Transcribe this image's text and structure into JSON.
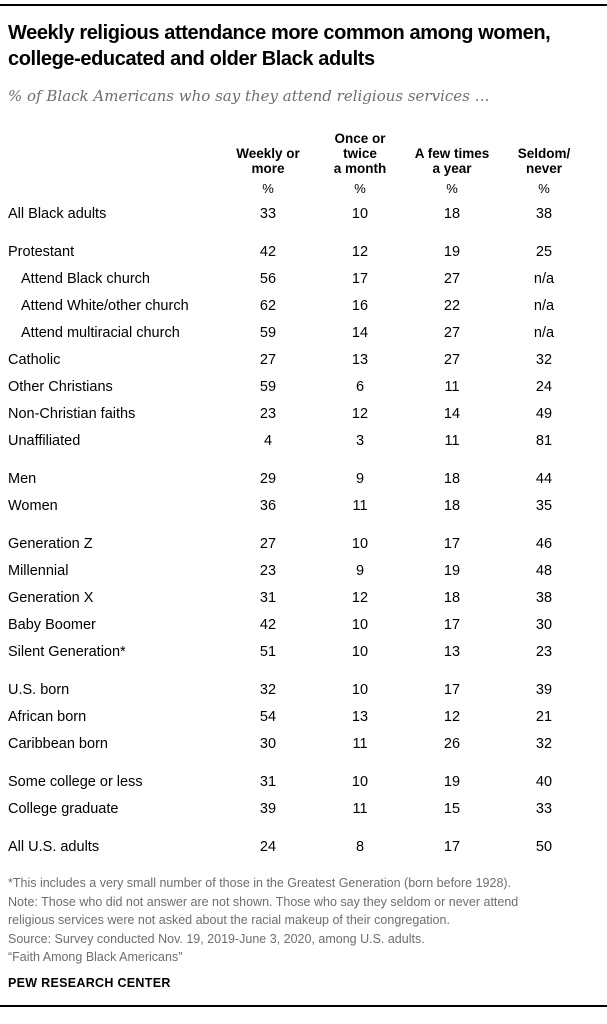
{
  "header": {
    "title": "Weekly religious attendance more common among women, college-educated and older Black adults",
    "subtitle": "% of Black Americans who say they attend religious services …"
  },
  "chart_data": {
    "type": "table",
    "title": "Weekly religious attendance more common among women, college-educated and older Black adults",
    "subtitle": "% of Black Americans who say they attend religious services …",
    "columns": [
      "Weekly or\nmore",
      "Once or\ntwice\na month",
      "A few times\na year",
      "Seldom/\nnever"
    ],
    "unit_row": [
      "%",
      "%",
      "%",
      "%"
    ],
    "groups": [
      {
        "rows": [
          {
            "label": "All Black adults",
            "indent": false,
            "values": [
              "33",
              "10",
              "18",
              "38"
            ]
          }
        ]
      },
      {
        "rows": [
          {
            "label": "Protestant",
            "indent": false,
            "values": [
              "42",
              "12",
              "19",
              "25"
            ]
          },
          {
            "label": "Attend Black church",
            "indent": true,
            "values": [
              "56",
              "17",
              "27",
              "n/a"
            ]
          },
          {
            "label": "Attend White/other church",
            "indent": true,
            "values": [
              "62",
              "16",
              "22",
              "n/a"
            ]
          },
          {
            "label": "Attend multiracial church",
            "indent": true,
            "values": [
              "59",
              "14",
              "27",
              "n/a"
            ]
          },
          {
            "label": "Catholic",
            "indent": false,
            "values": [
              "27",
              "13",
              "27",
              "32"
            ]
          },
          {
            "label": "Other Christians",
            "indent": false,
            "values": [
              "59",
              "6",
              "11",
              "24"
            ]
          },
          {
            "label": "Non-Christian faiths",
            "indent": false,
            "values": [
              "23",
              "12",
              "14",
              "49"
            ]
          },
          {
            "label": "Unaffiliated",
            "indent": false,
            "values": [
              "4",
              "3",
              "11",
              "81"
            ]
          }
        ]
      },
      {
        "rows": [
          {
            "label": "Men",
            "indent": false,
            "values": [
              "29",
              "9",
              "18",
              "44"
            ]
          },
          {
            "label": "Women",
            "indent": false,
            "values": [
              "36",
              "11",
              "18",
              "35"
            ]
          }
        ]
      },
      {
        "rows": [
          {
            "label": "Generation Z",
            "indent": false,
            "values": [
              "27",
              "10",
              "17",
              "46"
            ]
          },
          {
            "label": "Millennial",
            "indent": false,
            "values": [
              "23",
              "9",
              "19",
              "48"
            ]
          },
          {
            "label": "Generation X",
            "indent": false,
            "values": [
              "31",
              "12",
              "18",
              "38"
            ]
          },
          {
            "label": "Baby Boomer",
            "indent": false,
            "values": [
              "42",
              "10",
              "17",
              "30"
            ]
          },
          {
            "label": "Silent Generation*",
            "indent": false,
            "values": [
              "51",
              "10",
              "13",
              "23"
            ]
          }
        ]
      },
      {
        "rows": [
          {
            "label": "U.S. born",
            "indent": false,
            "values": [
              "32",
              "10",
              "17",
              "39"
            ]
          },
          {
            "label": "African born",
            "indent": false,
            "values": [
              "54",
              "13",
              "12",
              "21"
            ]
          },
          {
            "label": "Caribbean born",
            "indent": false,
            "values": [
              "30",
              "11",
              "26",
              "32"
            ]
          }
        ]
      },
      {
        "rows": [
          {
            "label": "Some college or less",
            "indent": false,
            "values": [
              "31",
              "10",
              "19",
              "40"
            ]
          },
          {
            "label": "College graduate",
            "indent": false,
            "values": [
              "39",
              "11",
              "15",
              "33"
            ]
          }
        ]
      },
      {
        "rows": [
          {
            "label": "All U.S. adults",
            "indent": false,
            "values": [
              "24",
              "8",
              "17",
              "50"
            ]
          }
        ]
      }
    ]
  },
  "footnotes": [
    "*This includes a very small number of those in the Greatest Generation (born before 1928).",
    "Note: Those who did not answer are not shown. Those who say they seldom or never attend",
    "religious services were not asked about the racial makeup of their congregation.",
    "Source: Survey conducted Nov. 19, 2019-June 3, 2020, among U.S. adults.",
    "“Faith Among Black Americans”"
  ],
  "footer": {
    "brand": "PEW RESEARCH CENTER"
  },
  "colors": {
    "text": "#000000",
    "muted": "#6e6e6e",
    "rule": "#000000",
    "background": "#ffffff"
  }
}
